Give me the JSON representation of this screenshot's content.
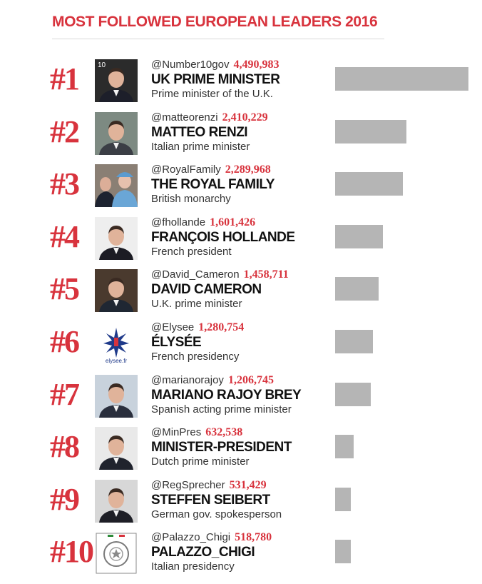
{
  "chart_data": {
    "type": "bar",
    "title": "MOST FOLLOWED EUROPEAN LEADERS 2016",
    "ranks": [
      "#1",
      "#2",
      "#3",
      "#4",
      "#5",
      "#6",
      "#7",
      "#8",
      "#9",
      "#10"
    ],
    "categories": [
      "@Number10gov",
      "@matteorenzi",
      "@RoyalFamily",
      "@fhollande",
      "@David_Cameron",
      "@Elysee",
      "@marianorajoy",
      "@MinPres",
      "@RegSprecher",
      "@Palazzo_Chigi"
    ],
    "names": [
      "UK PRIME MINISTER",
      "MATTEO RENZI",
      "THE ROYAL FAMILY",
      "FRANÇOIS HOLLANDE",
      "DAVID CAMERON",
      "ÉLYSÉE",
      "MARIANO RAJOY BREY",
      "MINISTER-PRESIDENT",
      "STEFFEN SEIBERT",
      "PALAZZO_CHIGI"
    ],
    "descriptions": [
      "Prime minister of the U.K.",
      "Italian prime minister",
      "British monarchy",
      "French president",
      "U.K. prime minister",
      "French presidency",
      "Spanish acting prime minister",
      "Dutch prime minister",
      "German gov. spokesperson",
      "Italian presidency"
    ],
    "values": [
      4490983,
      2410229,
      2289968,
      1601426,
      1458711,
      1280754,
      1206745,
      632538,
      531429,
      518780
    ],
    "value_labels": [
      "4,490,983",
      "2,410,229",
      "2,289,968",
      "1,601,426",
      "1,458,711",
      "1,280,754",
      "1,206,745",
      "632,538",
      "531,429",
      "518,780"
    ],
    "orientation": "horizontal",
    "xlim": [
      0,
      4490983
    ],
    "grid": false,
    "legend": "none"
  },
  "colors": {
    "accent": "#d8333d",
    "bar": "#b5b5b5",
    "name_text": "#111111",
    "body_text": "#333333"
  },
  "thumbnails": [
    "portrait-photo",
    "portrait-photo",
    "royal-family-photo",
    "portrait-photo",
    "portrait-photo",
    "elysee-logo",
    "portrait-photo",
    "portrait-photo",
    "portrait-photo",
    "palazzo-chigi-seal"
  ],
  "logo_text": {
    "number10": "10",
    "elysee": "elysee.fr"
  }
}
